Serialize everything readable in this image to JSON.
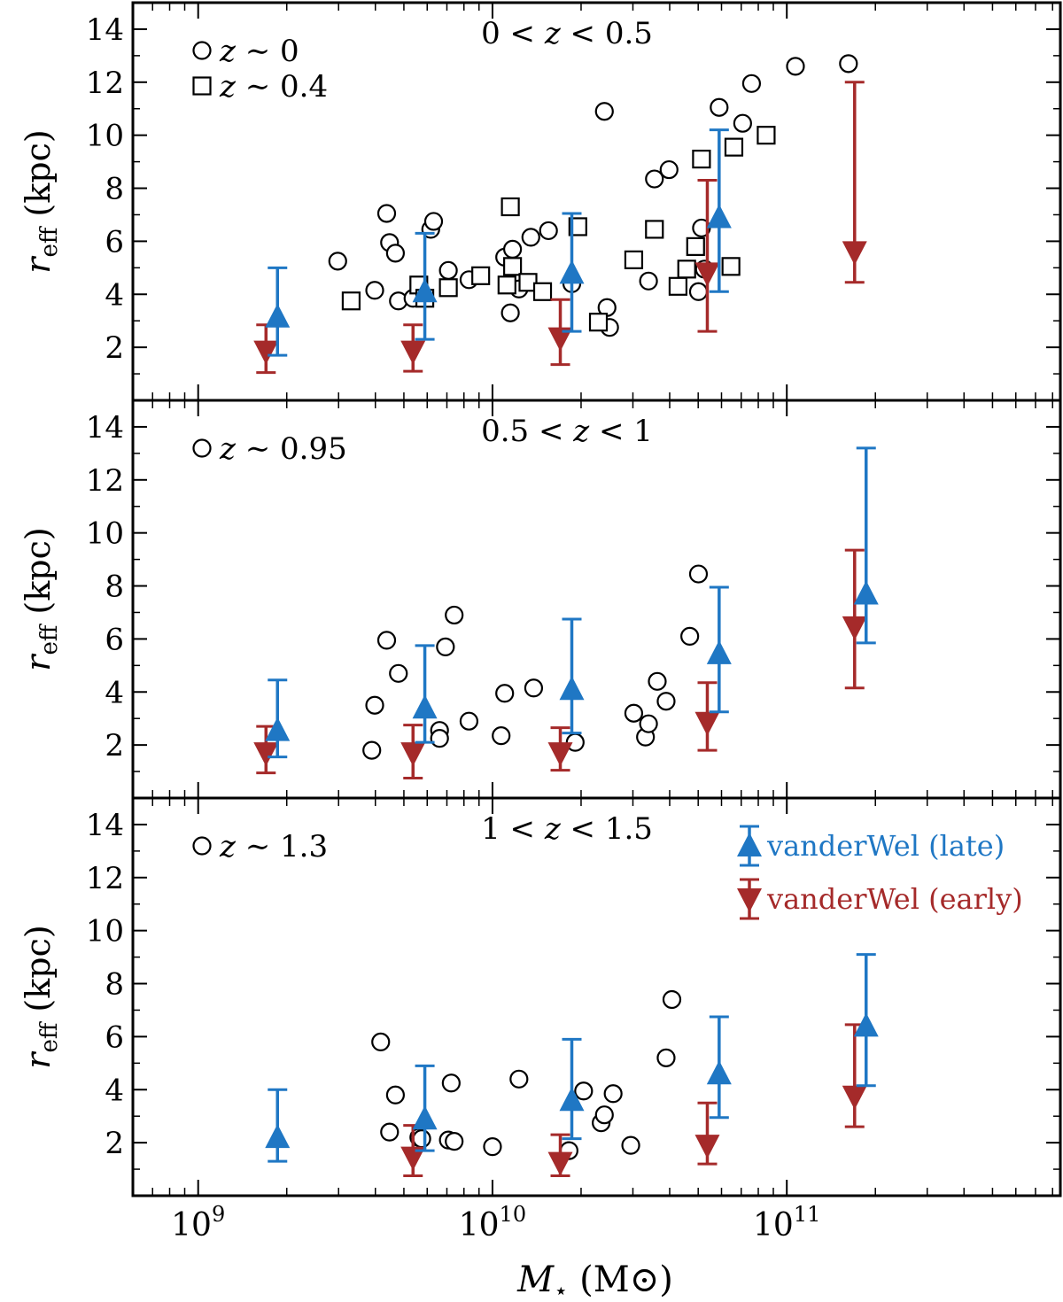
{
  "figure": {
    "xlabel": "M⋆ (M⊙)",
    "xlabel_main": "M",
    "xlabel_sub": "⋆",
    "xlabel_unit": "(M⊙)",
    "ylabel_main": "r",
    "ylabel_sub": "eff",
    "ylabel_unit": "(kpc)",
    "x_tick_labels": [
      "10^9",
      "10^10",
      "10^11"
    ],
    "colors": {
      "late": "#1f77c4",
      "early": "#a52a2a",
      "axis": "#000000"
    }
  },
  "chart_data": [
    {
      "type": "scatter",
      "panel_label": "0 < z < 0.5",
      "xscale": "log",
      "xlim": [
        600000000.0,
        850000000000.0
      ],
      "ylim": [
        0,
        15
      ],
      "yticks": [
        2,
        4,
        6,
        8,
        10,
        12,
        14
      ],
      "legend": [
        {
          "marker": "circle",
          "label": "z ∼ 0"
        },
        {
          "marker": "square",
          "label": "z ∼ 0.4"
        }
      ],
      "series": [
        {
          "marker": "circle",
          "points": [
            [
              2980000000.0,
              5.25
            ],
            [
              3980000000.0,
              4.15
            ],
            [
              4370000000.0,
              7.05
            ],
            [
              4470000000.0,
              5.95
            ],
            [
              4680000000.0,
              5.55
            ],
            [
              4790000000.0,
              3.75
            ],
            [
              5370000000.0,
              3.85
            ],
            [
              6170000000.0,
              6.45
            ],
            [
              6310000000.0,
              6.75
            ],
            [
              7080000000.0,
              4.9
            ],
            [
              8320000000.0,
              4.55
            ],
            [
              11000000000.0,
              5.4
            ],
            [
              11500000000.0,
              3.3
            ],
            [
              11700000000.0,
              5.7
            ],
            [
              12300000000.0,
              4.2
            ],
            [
              13500000000.0,
              6.15
            ],
            [
              15500000000.0,
              6.4
            ],
            [
              18600000000.0,
              4.4
            ],
            [
              24000000000.0,
              10.9
            ],
            [
              24500000000.0,
              3.5
            ],
            [
              25000000000.0,
              2.75
            ],
            [
              33900000000.0,
              4.5
            ],
            [
              35500000000.0,
              8.35
            ],
            [
              39800000000.0,
              8.7
            ],
            [
              50100000000.0,
              4.1
            ],
            [
              51300000000.0,
              6.5
            ],
            [
              52500000000.0,
              4.95
            ],
            [
              58900000000.0,
              11.05
            ],
            [
              70800000000.0,
              10.45
            ],
            [
              75900000000.0,
              11.95
            ],
            [
              107000000000.0,
              12.6
            ],
            [
              162000000000.0,
              12.7
            ]
          ]
        },
        {
          "marker": "square",
          "points": [
            [
              3310000000.0,
              3.75
            ],
            [
              5620000000.0,
              4.35
            ],
            [
              5890000000.0,
              3.85
            ],
            [
              7080000000.0,
              4.25
            ],
            [
              9120000000.0,
              4.7
            ],
            [
              11200000000.0,
              4.35
            ],
            [
              11500000000.0,
              7.3
            ],
            [
              11700000000.0,
              5.05
            ],
            [
              13200000000.0,
              4.45
            ],
            [
              14800000000.0,
              4.1
            ],
            [
              19500000000.0,
              6.55
            ],
            [
              22900000000.0,
              2.95
            ],
            [
              30200000000.0,
              5.3
            ],
            [
              35500000000.0,
              6.45
            ],
            [
              42700000000.0,
              4.3
            ],
            [
              45700000000.0,
              4.95
            ],
            [
              49000000000.0,
              5.8
            ],
            [
              51300000000.0,
              9.1
            ],
            [
              64600000000.0,
              5.05
            ],
            [
              66100000000.0,
              9.55
            ],
            [
              85100000000.0,
              10.0
            ]
          ]
        }
      ],
      "vanderwel_late": [
        {
          "x": 1860000000.0,
          "y": 3.15,
          "lo": 1.7,
          "hi": 5.0
        },
        {
          "x": 5890000000.0,
          "y": 4.1,
          "lo": 2.3,
          "hi": 6.3
        },
        {
          "x": 18600000000.0,
          "y": 4.8,
          "lo": 2.6,
          "hi": 7.05
        },
        {
          "x": 58900000000.0,
          "y": 6.9,
          "lo": 4.1,
          "hi": 10.2
        }
      ],
      "vanderwel_early": [
        {
          "x": 1700000000.0,
          "y": 1.85,
          "lo": 1.05,
          "hi": 2.85
        },
        {
          "x": 5370000000.0,
          "y": 1.85,
          "lo": 1.1,
          "hi": 2.85
        },
        {
          "x": 17000000000.0,
          "y": 2.35,
          "lo": 1.35,
          "hi": 3.8
        },
        {
          "x": 53700000000.0,
          "y": 4.8,
          "lo": 2.6,
          "hi": 8.3
        },
        {
          "x": 170000000000.0,
          "y": 5.6,
          "lo": 4.45,
          "hi": 12.0
        }
      ]
    },
    {
      "type": "scatter",
      "panel_label": "0.5 < z < 1",
      "xscale": "log",
      "xlim": [
        600000000.0,
        850000000000.0
      ],
      "ylim": [
        0,
        15
      ],
      "yticks": [
        2,
        4,
        6,
        8,
        10,
        12,
        14
      ],
      "legend": [
        {
          "marker": "circle",
          "label": "z ∼ 0.95"
        }
      ],
      "series": [
        {
          "marker": "circle",
          "points": [
            [
              3890000000.0,
              1.8
            ],
            [
              3980000000.0,
              3.5
            ],
            [
              4370000000.0,
              5.95
            ],
            [
              4790000000.0,
              4.7
            ],
            [
              6610000000.0,
              2.55
            ],
            [
              6610000000.0,
              2.25
            ],
            [
              6920000000.0,
              5.7
            ],
            [
              7410000000.0,
              6.9
            ],
            [
              8320000000.0,
              2.9
            ],
            [
              10700000000.0,
              2.35
            ],
            [
              11000000000.0,
              3.95
            ],
            [
              13800000000.0,
              4.15
            ],
            [
              19100000000.0,
              2.1
            ],
            [
              30200000000.0,
              3.2
            ],
            [
              33100000000.0,
              2.3
            ],
            [
              33900000000.0,
              2.8
            ],
            [
              36300000000.0,
              4.4
            ],
            [
              38900000000.0,
              3.65
            ],
            [
              46800000000.0,
              6.1
            ],
            [
              50100000000.0,
              8.45
            ]
          ]
        }
      ],
      "vanderwel_late": [
        {
          "x": 1860000000.0,
          "y": 2.55,
          "lo": 1.55,
          "hi": 4.45
        },
        {
          "x": 5890000000.0,
          "y": 3.4,
          "lo": 2.1,
          "hi": 5.75
        },
        {
          "x": 18600000000.0,
          "y": 4.1,
          "lo": 2.45,
          "hi": 6.75
        },
        {
          "x": 58900000000.0,
          "y": 5.45,
          "lo": 3.25,
          "hi": 7.95
        },
        {
          "x": 186000000000.0,
          "y": 7.7,
          "lo": 5.85,
          "hi": 13.2
        }
      ],
      "vanderwel_early": [
        {
          "x": 1700000000.0,
          "y": 1.7,
          "lo": 0.95,
          "hi": 2.7
        },
        {
          "x": 5370000000.0,
          "y": 1.7,
          "lo": 0.75,
          "hi": 2.75
        },
        {
          "x": 17000000000.0,
          "y": 1.7,
          "lo": 1.05,
          "hi": 2.65
        },
        {
          "x": 53700000000.0,
          "y": 2.85,
          "lo": 1.8,
          "hi": 4.35
        },
        {
          "x": 170000000000.0,
          "y": 6.45,
          "lo": 4.15,
          "hi": 9.35
        }
      ]
    },
    {
      "type": "scatter",
      "panel_label": "1 < z < 1.5",
      "xscale": "log",
      "xlim": [
        600000000.0,
        850000000000.0
      ],
      "ylim": [
        0,
        15
      ],
      "yticks": [
        2,
        4,
        6,
        8,
        10,
        12,
        14
      ],
      "legend": [
        {
          "marker": "circle",
          "label": "z ∼ 1.3"
        }
      ],
      "legend_series": [
        {
          "key": "vanderwel_late",
          "label": "vanderWel (late)"
        },
        {
          "key": "vanderwel_early",
          "label": "vanderWel (early)"
        }
      ],
      "series": [
        {
          "marker": "circle",
          "points": [
            [
              4170000000.0,
              5.8
            ],
            [
              4470000000.0,
              2.4
            ],
            [
              4680000000.0,
              3.8
            ],
            [
              5620000000.0,
              2.2
            ],
            [
              5750000000.0,
              2.15
            ],
            [
              7080000000.0,
              2.1
            ],
            [
              7240000000.0,
              4.25
            ],
            [
              7410000000.0,
              2.05
            ],
            [
              10000000000.0,
              1.85
            ],
            [
              12300000000.0,
              4.4
            ],
            [
              18200000000.0,
              1.7
            ],
            [
              20400000000.0,
              3.95
            ],
            [
              23400000000.0,
              2.75
            ],
            [
              24000000000.0,
              3.05
            ],
            [
              25700000000.0,
              3.85
            ],
            [
              29500000000.0,
              1.9
            ],
            [
              38900000000.0,
              5.2
            ],
            [
              40700000000.0,
              7.4
            ]
          ]
        }
      ],
      "vanderwel_late": [
        {
          "x": 1860000000.0,
          "y": 2.2,
          "lo": 1.3,
          "hi": 4.0
        },
        {
          "x": 5890000000.0,
          "y": 2.9,
          "lo": 1.7,
          "hi": 4.9
        },
        {
          "x": 18600000000.0,
          "y": 3.6,
          "lo": 2.15,
          "hi": 5.9
        },
        {
          "x": 58900000000.0,
          "y": 4.6,
          "lo": 2.95,
          "hi": 6.75
        },
        {
          "x": 186000000000.0,
          "y": 6.4,
          "lo": 4.15,
          "hi": 9.1
        }
      ],
      "vanderwel_early": [
        {
          "x": 5370000000.0,
          "y": 1.45,
          "lo": 0.75,
          "hi": 2.65
        },
        {
          "x": 17000000000.0,
          "y": 1.25,
          "lo": 0.75,
          "hi": 2.3
        },
        {
          "x": 53700000000.0,
          "y": 1.9,
          "lo": 1.2,
          "hi": 3.5
        },
        {
          "x": 170000000000.0,
          "y": 3.75,
          "lo": 2.6,
          "hi": 6.45
        }
      ]
    }
  ]
}
